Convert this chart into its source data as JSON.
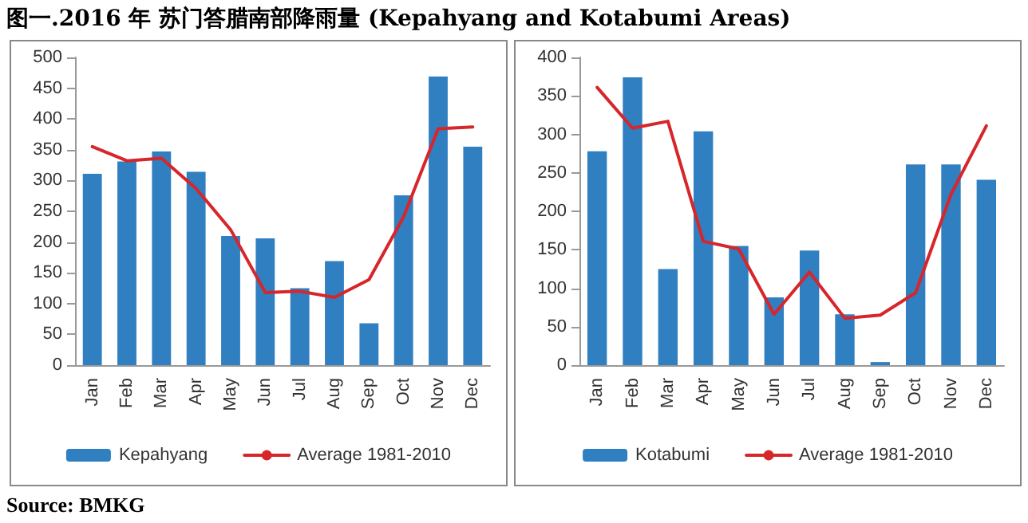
{
  "chart_data": [
    {
      "type": "bar",
      "title": "图一.2016 年 苏门答腊南部降雨量 (Kepahyang and Kotabumi Areas)",
      "annotations": [
        "Source: BMKG"
      ],
      "categories": [
        "Jan",
        "Feb",
        "Mar",
        "Apr",
        "May",
        "Jun",
        "Jul",
        "Aug",
        "Sep",
        "Oct",
        "Nov",
        "Dec"
      ],
      "series": [
        {
          "name": "Kepahyang",
          "color": "#2f7fc1",
          "values": [
            311,
            331,
            347,
            314,
            210,
            206,
            125,
            169,
            68,
            276,
            469,
            355
          ]
        },
        {
          "name": "Average 1981-2010",
          "type": "line",
          "color": "#d7262b",
          "values": [
            355,
            332,
            336,
            287,
            220,
            118,
            120,
            110,
            139,
            241,
            384,
            387
          ]
        }
      ],
      "ylim": [
        0,
        500
      ],
      "yticks": [
        0,
        50,
        100,
        150,
        200,
        250,
        300,
        350,
        400,
        450,
        500
      ],
      "grid": false,
      "legend": "bottom",
      "marker": "none",
      "line_style": "solid"
    },
    {
      "type": "bar",
      "categories": [
        "Jan",
        "Feb",
        "Mar",
        "Apr",
        "May",
        "Jun",
        "Jul",
        "Aug",
        "Sep",
        "Oct",
        "Nov",
        "Dec"
      ],
      "series": [
        {
          "name": "Kotabumi",
          "color": "#2f7fc1",
          "values": [
            278,
            374,
            125,
            304,
            155,
            88,
            149,
            66,
            4,
            261,
            261,
            241
          ]
        },
        {
          "name": "Average 1981-2010",
          "type": "line",
          "color": "#d7262b",
          "values": [
            361,
            308,
            317,
            161,
            151,
            66,
            121,
            61,
            65,
            94,
            222,
            311
          ]
        }
      ],
      "ylim": [
        0,
        400
      ],
      "yticks": [
        0,
        50,
        100,
        150,
        200,
        250,
        300,
        350,
        400
      ],
      "grid": false,
      "legend": "bottom",
      "marker": "none",
      "line_style": "solid"
    }
  ]
}
